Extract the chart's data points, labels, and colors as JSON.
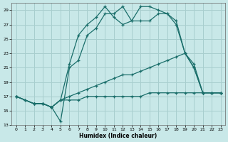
{
  "xlabel": "Humidex (Indice chaleur)",
  "bg_color": "#c8e8e8",
  "grid_color": "#a8cece",
  "line_color": "#1a6e6a",
  "xlim": [
    -0.5,
    23.5
  ],
  "ylim": [
    13,
    30
  ],
  "yticks": [
    13,
    15,
    17,
    19,
    21,
    23,
    25,
    27,
    29
  ],
  "xticks": [
    0,
    1,
    2,
    3,
    4,
    5,
    6,
    7,
    8,
    9,
    10,
    11,
    12,
    13,
    14,
    15,
    16,
    17,
    18,
    19,
    20,
    21,
    22,
    23
  ],
  "series": [
    {
      "x": [
        0,
        1,
        2,
        3,
        4,
        5,
        6,
        7,
        8,
        9,
        10,
        11,
        12,
        13,
        14,
        15,
        16,
        17,
        18,
        19,
        20,
        21,
        22,
        23
      ],
      "y": [
        17.0,
        16.5,
        16.0,
        16.0,
        15.5,
        16.5,
        16.5,
        16.5,
        17.0,
        17.0,
        17.0,
        17.0,
        17.0,
        17.0,
        17.0,
        17.5,
        17.5,
        17.5,
        17.5,
        17.5,
        17.5,
        17.5,
        17.5,
        17.5
      ]
    },
    {
      "x": [
        0,
        1,
        2,
        3,
        4,
        5,
        6,
        7,
        8,
        9,
        10,
        11,
        12,
        13,
        14,
        15,
        16,
        17,
        18,
        19,
        20,
        21,
        22,
        23
      ],
      "y": [
        17.0,
        16.5,
        16.0,
        16.0,
        15.5,
        16.5,
        17.0,
        17.5,
        18.0,
        18.5,
        19.0,
        19.5,
        20.0,
        20.0,
        20.5,
        21.0,
        21.5,
        22.0,
        22.5,
        23.0,
        21.5,
        17.5,
        17.5,
        17.5
      ]
    },
    {
      "x": [
        0,
        2,
        3,
        4,
        5,
        6,
        7,
        8,
        9,
        10,
        11,
        12,
        13,
        14,
        15,
        16,
        17,
        18,
        19,
        20,
        21,
        22,
        23
      ],
      "y": [
        17.0,
        16.0,
        16.0,
        15.5,
        13.5,
        21.0,
        22.0,
        25.5,
        26.5,
        28.5,
        28.5,
        29.5,
        27.5,
        27.5,
        27.5,
        28.5,
        28.5,
        27.5,
        23.0,
        21.0,
        17.5,
        17.5,
        17.5
      ]
    },
    {
      "x": [
        0,
        2,
        3,
        4,
        5,
        6,
        7,
        8,
        9,
        10,
        11,
        12,
        13,
        14,
        15,
        16,
        17,
        18,
        19,
        20,
        21,
        22,
        23
      ],
      "y": [
        17.0,
        16.0,
        16.0,
        15.5,
        16.5,
        21.5,
        25.5,
        27.0,
        28.0,
        29.5,
        28.0,
        27.0,
        27.5,
        29.5,
        29.5,
        29.0,
        28.5,
        27.0,
        23.0,
        21.0,
        17.5,
        17.5,
        17.5
      ]
    }
  ]
}
